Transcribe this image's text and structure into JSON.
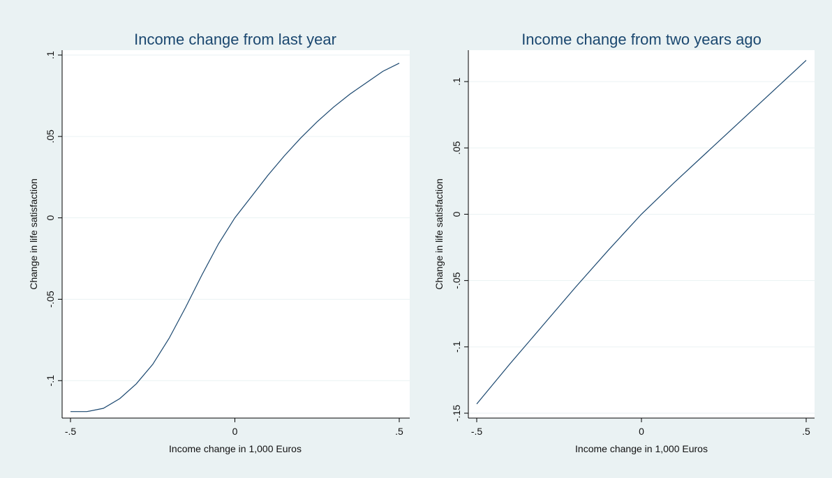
{
  "chart_data": [
    {
      "type": "line",
      "title": "Income change from last year",
      "xlabel": "Income change in 1,000 Euros",
      "ylabel": "Change in life satisfaction",
      "xlim": [
        -0.5,
        0.5
      ],
      "ylim": [
        -0.12,
        0.1
      ],
      "xticks": [
        -0.5,
        0,
        0.5
      ],
      "xtick_labels": [
        "-.5",
        "0",
        ".5"
      ],
      "yticks": [
        -0.1,
        -0.05,
        0,
        0.05,
        0.1
      ],
      "ytick_labels": [
        "-.1",
        "-.05",
        "0",
        ".05",
        ".1"
      ],
      "grid": true,
      "series": [
        {
          "x": [
            -0.5,
            -0.45,
            -0.4,
            -0.35,
            -0.3,
            -0.25,
            -0.2,
            -0.15,
            -0.1,
            -0.05,
            0,
            0.05,
            0.1,
            0.15,
            0.2,
            0.25,
            0.3,
            0.35,
            0.4,
            0.45,
            0.5
          ],
          "y": [
            -0.119,
            -0.119,
            -0.117,
            -0.111,
            -0.102,
            -0.09,
            -0.074,
            -0.055,
            -0.035,
            -0.016,
            0,
            0.013,
            0.026,
            0.038,
            0.049,
            0.059,
            0.068,
            0.076,
            0.083,
            0.09,
            0.095
          ]
        }
      ]
    },
    {
      "type": "line",
      "title": "Income change from two years ago",
      "xlabel": "Income change in 1,000 Euros",
      "ylabel": "Change in life satisfaction",
      "xlim": [
        -0.5,
        0.5
      ],
      "ylim": [
        -0.15,
        0.12
      ],
      "xticks": [
        -0.5,
        0,
        0.5
      ],
      "xtick_labels": [
        "-.5",
        "0",
        ".5"
      ],
      "yticks": [
        -0.15,
        -0.1,
        -0.05,
        0,
        0.05,
        0.1
      ],
      "ytick_labels": [
        "-.15",
        "-.1",
        "-.05",
        "0",
        ".05",
        ".1"
      ],
      "grid": true,
      "series": [
        {
          "x": [
            -0.5,
            -0.4,
            -0.3,
            -0.2,
            -0.1,
            0,
            0.1,
            0.2,
            0.3,
            0.4,
            0.5
          ],
          "y": [
            -0.143,
            -0.113,
            -0.084,
            -0.055,
            -0.027,
            0,
            0.024,
            0.047,
            0.07,
            0.093,
            0.116
          ]
        }
      ]
    }
  ]
}
